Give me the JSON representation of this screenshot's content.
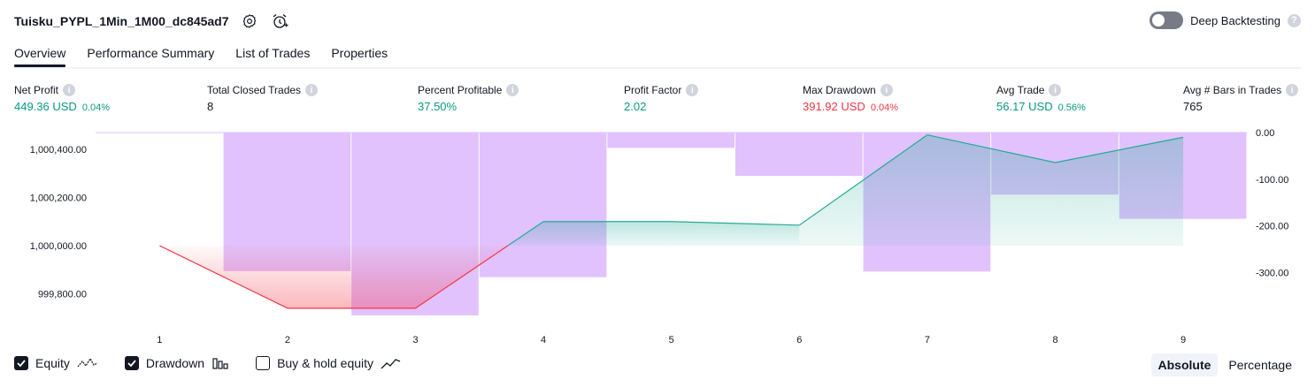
{
  "header": {
    "strategy_name": "Tuisku_PYPL_1Min_1M00_dc845ad7",
    "deep_backtesting_label": "Deep Backtesting"
  },
  "tabs": [
    {
      "label": "Overview",
      "active": true
    },
    {
      "label": "Performance Summary",
      "active": false
    },
    {
      "label": "List of Trades",
      "active": false
    },
    {
      "label": "Properties",
      "active": false
    }
  ],
  "metrics": [
    {
      "label": "Net Profit",
      "value": "449.36 USD",
      "pct": "0.04%",
      "color": "green"
    },
    {
      "label": "Total Closed Trades",
      "value": "8",
      "pct": "",
      "color": "dark"
    },
    {
      "label": "Percent Profitable",
      "value": "37.50%",
      "pct": "",
      "color": "green"
    },
    {
      "label": "Profit Factor",
      "value": "2.02",
      "pct": "",
      "color": "green"
    },
    {
      "label": "Max Drawdown",
      "value": "391.92 USD",
      "pct": "0.04%",
      "color": "red"
    },
    {
      "label": "Avg Trade",
      "value": "56.17 USD",
      "pct": "0.56%",
      "color": "green"
    },
    {
      "label": "Avg # Bars in Trades",
      "value": "765",
      "pct": "",
      "color": "dark"
    }
  ],
  "legend": {
    "equity_label": "Equity",
    "equity_checked": true,
    "drawdown_label": "Drawdown",
    "drawdown_checked": true,
    "buyhold_label": "Buy & hold equity",
    "buyhold_checked": false
  },
  "modes": {
    "absolute_label": "Absolute",
    "percentage_label": "Percentage",
    "active": "Absolute"
  },
  "colors": {
    "profit": "#089981",
    "loss": "#f23645",
    "drawdown_bar": "#e1c2fd",
    "equity_line": "#22ab94",
    "equity_loss_line": "#f23645"
  },
  "chart_data": {
    "type": "line",
    "x": [
      1,
      2,
      3,
      4,
      5,
      6,
      7,
      8,
      9
    ],
    "left_axis": {
      "ticks": [
        "1,000,400.00",
        "1,000,200.00",
        "1,000,000.00",
        "999,800.00"
      ],
      "tick_values": [
        1000400,
        1000200,
        1000000,
        999800
      ]
    },
    "right_axis": {
      "ticks": [
        "0.00",
        "-100.00",
        "-200.00",
        "-300.00"
      ],
      "tick_values": [
        0,
        -100,
        -200,
        -300
      ]
    },
    "series": [
      {
        "name": "Equity",
        "values": [
          1000000,
          999740,
          999740,
          1000100,
          1000100,
          1000085,
          1000460,
          1000345,
          1000450
        ]
      },
      {
        "name": "Drawdown",
        "values": [
          0,
          -297,
          -392,
          -310,
          -33,
          -93,
          -298,
          -133,
          -185
        ]
      }
    ]
  }
}
